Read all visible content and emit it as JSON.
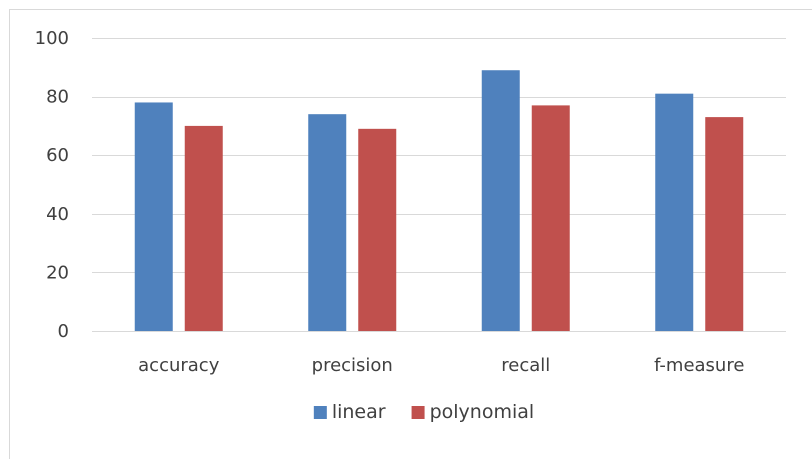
{
  "chart_data": {
    "type": "bar",
    "categories": [
      "accuracy",
      "precision",
      "recall",
      "f-measure"
    ],
    "series": [
      {
        "name": "linear",
        "values": [
          78,
          74,
          89,
          81
        ],
        "color": "#4f81bd"
      },
      {
        "name": "polynomial",
        "values": [
          70,
          69,
          77,
          73
        ],
        "color": "#c0504d"
      }
    ],
    "title": "",
    "xlabel": "",
    "ylabel": "",
    "ylim": [
      0,
      100
    ],
    "yticks": [
      0,
      20,
      40,
      60,
      80,
      100
    ],
    "grid": true,
    "legend": "bottom"
  }
}
